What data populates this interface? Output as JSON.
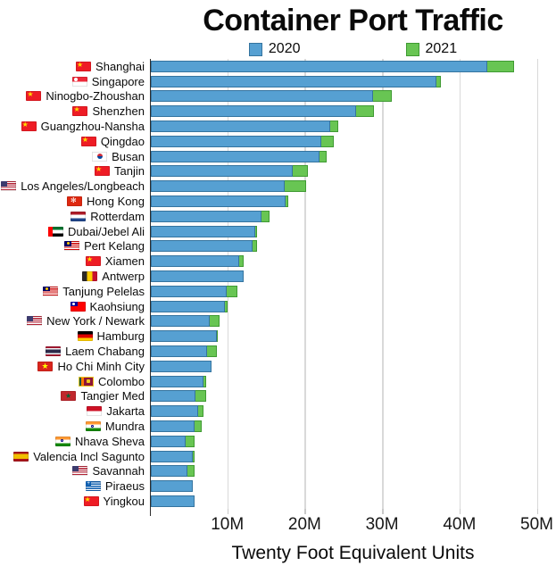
{
  "title": "Container Port Traffic",
  "chart_data": {
    "type": "bar",
    "orientation": "horizontal",
    "title": "Container Port Traffic",
    "xlabel": "Twenty Foot Equivalent Units",
    "unit": "TEU (millions)",
    "grid": true,
    "legend_position": "top",
    "xlim": [
      0,
      52.5
    ],
    "xticks": [
      {
        "value": 10,
        "label": "10M"
      },
      {
        "value": 20,
        "label": "20M"
      },
      {
        "value": 30,
        "label": "30M"
      },
      {
        "value": 40,
        "label": "40M"
      },
      {
        "value": 50,
        "label": "50M"
      }
    ],
    "categories": [
      "Shanghai",
      "Singapore",
      "Ninogbo-Zhoushan",
      "Shenzhen",
      "Guangzhou-Nansha",
      "Qingdao",
      "Busan",
      "Tanjin",
      "Los Angeles/Longbeach",
      "Hong Kong",
      "Rotterdam",
      "Dubai/Jebel Ali",
      "Pert Kelang",
      "Xiamen",
      "Antwerp",
      "Tanjung Pelelas",
      "Kaohsiung",
      "New York / Newark",
      "Hamburg",
      "Laem Chabang",
      "Ho Chi Minh City",
      "Colombo",
      "Tangier Med",
      "Jakarta",
      "Mundra",
      "Nhava Sheva",
      "Valencia Incl Sagunto",
      "Savannah",
      "Piraeus",
      "Yingkou"
    ],
    "flags": [
      "cn",
      "sg",
      "cn",
      "cn",
      "cn",
      "cn",
      "kr",
      "cn",
      "us",
      "hk",
      "nl",
      "ae",
      "my",
      "cn",
      "be",
      "my",
      "tw",
      "us",
      "de",
      "th",
      "vn",
      "lk",
      "ma",
      "id",
      "in",
      "in",
      "es",
      "us",
      "gr",
      "cn"
    ],
    "series": [
      {
        "name": "2020",
        "color": "#56A0D2",
        "border_color": "#35749F",
        "values": [
          43.5,
          36.9,
          28.7,
          26.5,
          23.2,
          22.0,
          21.8,
          18.3,
          17.3,
          17.4,
          14.35,
          13.5,
          13.2,
          11.4,
          12.0,
          9.8,
          9.6,
          7.6,
          8.5,
          7.3,
          7.8,
          6.85,
          5.8,
          6.1,
          5.7,
          4.5,
          5.4,
          4.7,
          5.4,
          5.65
        ]
      },
      {
        "name": "2021",
        "color": "#68C553",
        "border_color": "#3F9A32",
        "values": [
          47.0,
          37.5,
          31.1,
          28.8,
          24.2,
          23.7,
          22.7,
          20.3,
          20.1,
          17.8,
          15.3,
          13.7,
          13.7,
          12.0,
          12.0,
          11.2,
          9.9,
          8.9,
          8.7,
          8.5,
          7.9,
          7.2,
          7.2,
          6.75,
          6.6,
          5.6,
          5.6,
          5.6,
          5.3,
          5.2
        ]
      }
    ]
  }
}
